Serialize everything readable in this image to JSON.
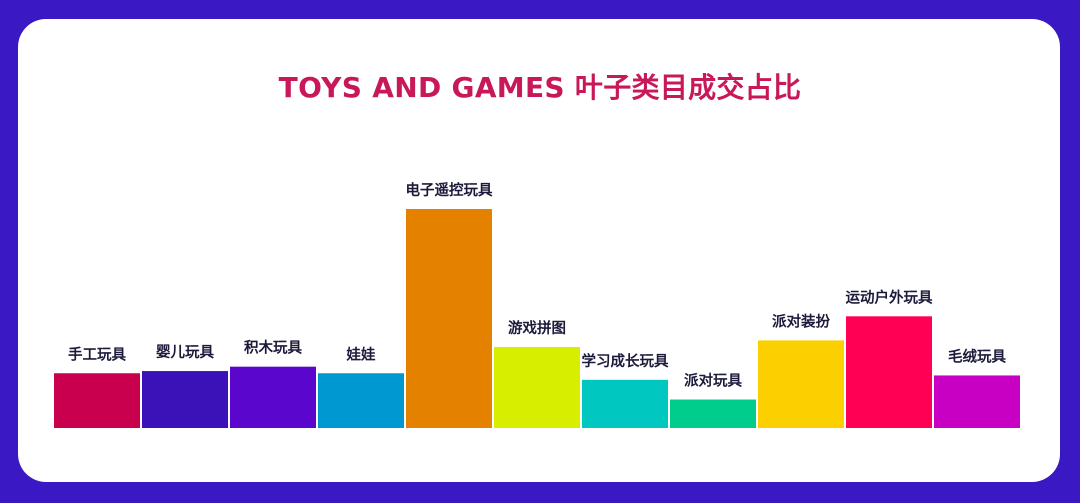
{
  "chart_data": {
    "type": "bar",
    "title": "TOYS AND GAMES 叶子类目成交占比",
    "xlabel": "",
    "ylabel": "",
    "ylim": [
      0,
      100
    ],
    "grid": false,
    "legend": "none",
    "categories": [
      "手工玩具",
      "婴儿玩具",
      "积木玩具",
      "娃娃",
      "电子遥控玩具",
      "游戏拼图",
      "学习成长玩具",
      "派对玩具",
      "派对装扮",
      "运动户外玩具",
      "毛绒玩具"
    ],
    "values": [
      25,
      26,
      28,
      25,
      100,
      37,
      22,
      13,
      40,
      51,
      24
    ],
    "colors": [
      "#c8004e",
      "#3a12b8",
      "#5a06cc",
      "#0098d0",
      "#e48200",
      "#d8ee00",
      "#00c8c0",
      "#00cc8c",
      "#fcd000",
      "#ff0054",
      "#c800c4"
    ]
  }
}
